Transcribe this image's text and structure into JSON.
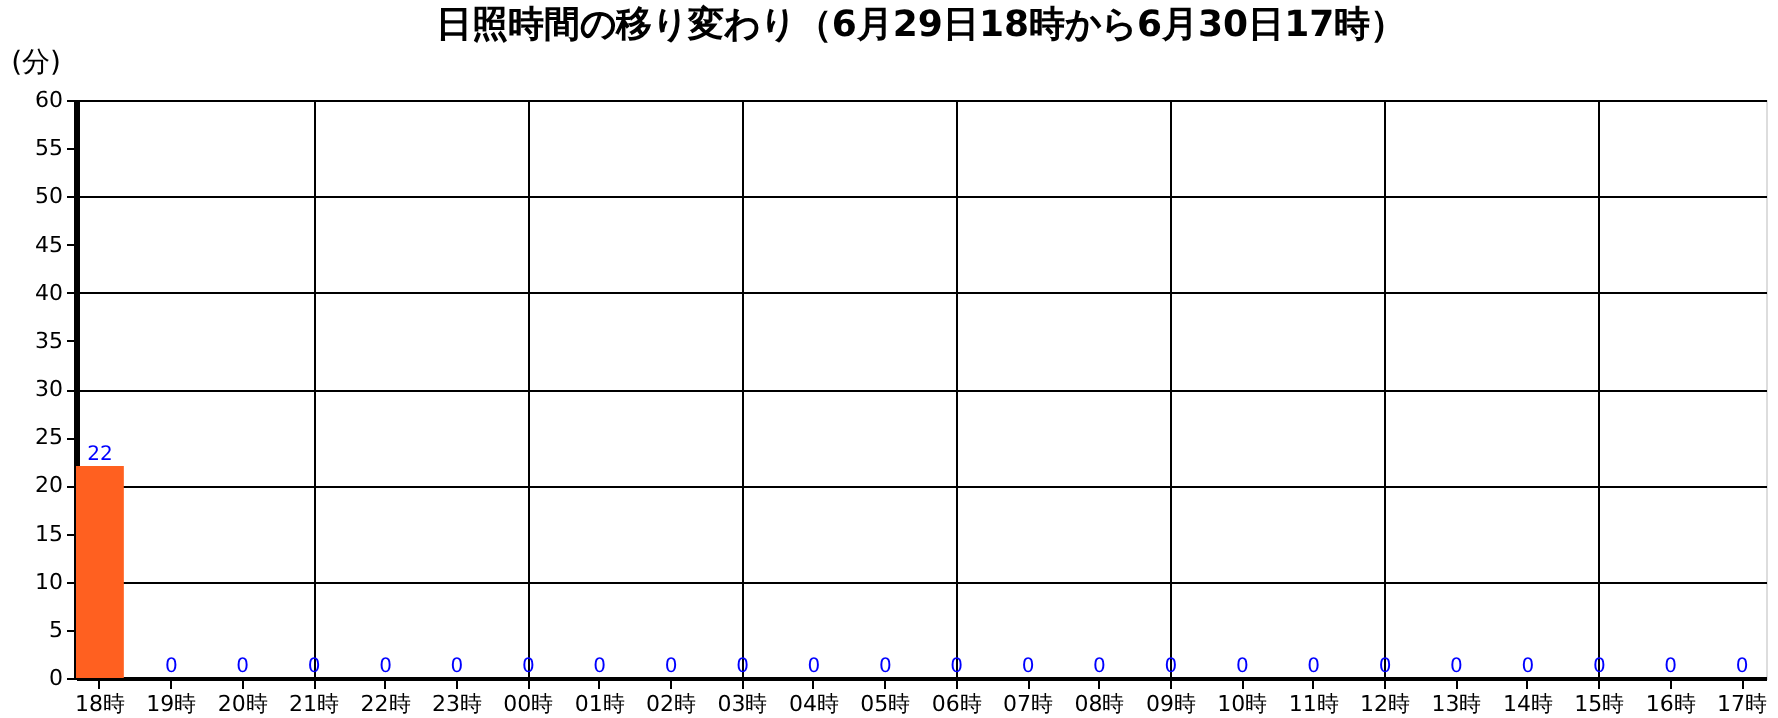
{
  "chart_data": {
    "type": "bar",
    "title": "日照時間の移り変わり（6月29日18時から6月30日17時）",
    "ylabel": "(分)",
    "categories": [
      "18時",
      "19時",
      "20時",
      "21時",
      "22時",
      "23時",
      "00時",
      "01時",
      "02時",
      "03時",
      "04時",
      "05時",
      "06時",
      "07時",
      "08時",
      "09時",
      "10時",
      "11時",
      "12時",
      "13時",
      "14時",
      "15時",
      "16時",
      "17時"
    ],
    "values": [
      22,
      0,
      0,
      0,
      0,
      0,
      0,
      0,
      0,
      0,
      0,
      0,
      0,
      0,
      0,
      0,
      0,
      0,
      0,
      0,
      0,
      0,
      0,
      0
    ],
    "color": "#ff6020",
    "ylim": [
      0,
      60
    ],
    "yticks": [
      0,
      5,
      10,
      15,
      20,
      25,
      30,
      35,
      40,
      45,
      50,
      55,
      60
    ],
    "grid": true,
    "data_labels": true
  }
}
